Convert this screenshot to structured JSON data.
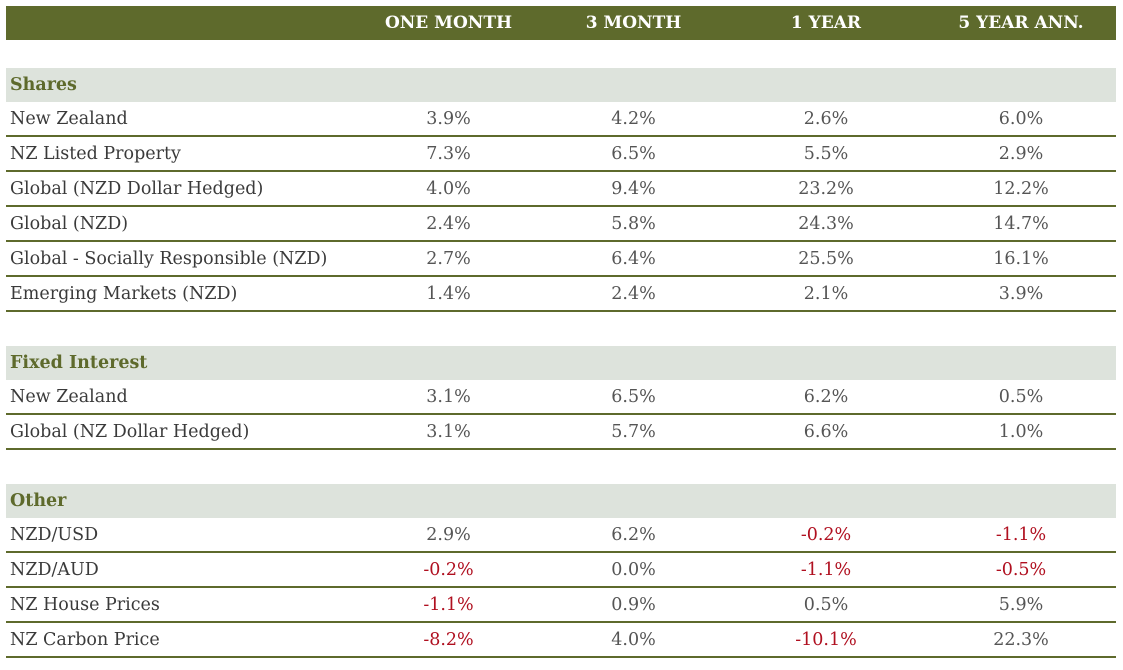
{
  "header": {
    "columns": [
      "ONE MONTH",
      "3 MONTH",
      "1 YEAR",
      "5 YEAR ANN."
    ]
  },
  "sections": [
    {
      "title": "Shares",
      "rows": [
        {
          "label": "New Zealand",
          "values": [
            "3.9%",
            "4.2%",
            "2.6%",
            "6.0%"
          ]
        },
        {
          "label": "NZ Listed Property",
          "values": [
            "7.3%",
            "6.5%",
            "5.5%",
            "2.9%"
          ]
        },
        {
          "label": "Global (NZD Dollar Hedged)",
          "values": [
            "4.0%",
            "9.4%",
            "23.2%",
            "12.2%"
          ]
        },
        {
          "label": "Global (NZD)",
          "values": [
            "2.4%",
            "5.8%",
            "24.3%",
            "14.7%"
          ]
        },
        {
          "label": "Global  - Socially Responsible (NZD)",
          "values": [
            "2.7%",
            "6.4%",
            "25.5%",
            "16.1%"
          ]
        },
        {
          "label": "Emerging Markets (NZD)",
          "values": [
            "1.4%",
            "2.4%",
            "2.1%",
            "3.9%"
          ]
        }
      ]
    },
    {
      "title": "Fixed Interest",
      "rows": [
        {
          "label": "New Zealand",
          "values": [
            "3.1%",
            "6.5%",
            "6.2%",
            "0.5%"
          ]
        },
        {
          "label": "Global (NZ Dollar Hedged)",
          "values": [
            "3.1%",
            "5.7%",
            "6.6%",
            "1.0%"
          ]
        }
      ]
    },
    {
      "title": "Other",
      "rows": [
        {
          "label": "NZD/USD",
          "values": [
            "2.9%",
            "6.2%",
            "-0.2%",
            "-1.1%"
          ]
        },
        {
          "label": "NZD/AUD",
          "values": [
            "-0.2%",
            "0.0%",
            "-1.1%",
            "-0.5%"
          ]
        },
        {
          "label": "NZ House Prices",
          "values": [
            "-1.1%",
            "0.9%",
            "0.5%",
            "5.9%"
          ]
        },
        {
          "label": "NZ Carbon Price",
          "values": [
            "-8.2%",
            "4.0%",
            "-10.1%",
            "22.3%"
          ]
        }
      ]
    }
  ],
  "colors": {
    "header_bg": "#5e6a2c",
    "section_bg": "#dde3dc",
    "negative": "#b01020"
  }
}
